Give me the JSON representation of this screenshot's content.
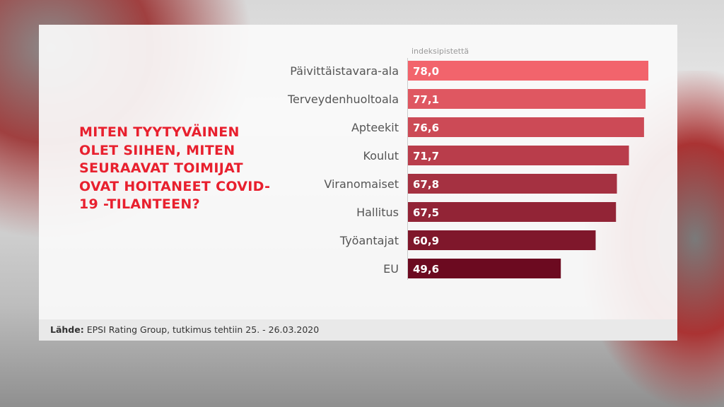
{
  "title": "MITEN TYYTYVÄINEN OLET SIIHEN, MITEN SEURAAVAT TOIMIJAT OVAT HOITANEET COVID-19 -TILANTEEN?",
  "footer": {
    "label": "Lähde:",
    "text": "EPSI Rating Group, tutkimus tehtiin 25. - 26.03.2020"
  },
  "chart_data": {
    "type": "bar",
    "orientation": "horizontal",
    "unit_label": "indeksipistettä",
    "categories": [
      "Päivittäistavara-ala",
      "Terveydenhuoltoala",
      "Apteekit",
      "Koulut",
      "Viranomaiset",
      "Hallitus",
      "Työantajat",
      "EU"
    ],
    "values": [
      78.0,
      77.1,
      76.6,
      71.7,
      67.8,
      67.5,
      60.9,
      49.6
    ],
    "value_labels": [
      "78,0",
      "77,1",
      "76,6",
      "71,7",
      "67,8",
      "67,5",
      "60,9",
      "49,6"
    ],
    "xlim": [
      0,
      78
    ],
    "grid": false,
    "colors": {
      "top": "#f2646c",
      "bottom": "#6c0a20",
      "title": "#e8202e"
    }
  }
}
